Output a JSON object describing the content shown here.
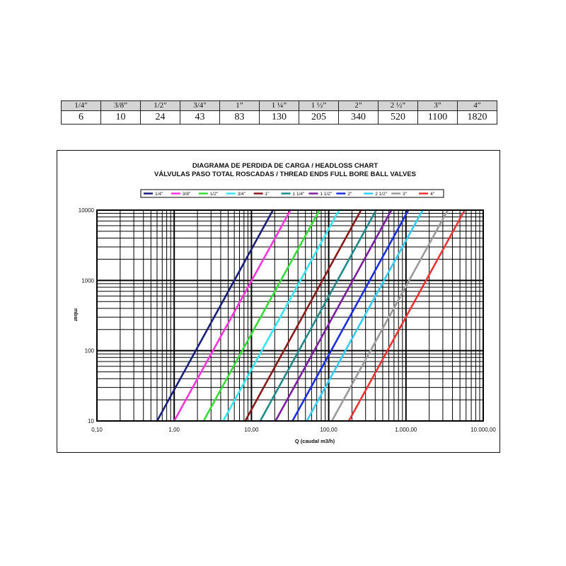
{
  "table": {
    "sizes": [
      "1/4\"",
      "3/8”",
      "1/2\"",
      "3/4\"",
      "1”",
      "1 ¼”",
      "1 ½”",
      "2”",
      "2 ½”",
      "3”",
      "4”"
    ],
    "cv_values": [
      "6",
      "10",
      "24",
      "43",
      "83",
      "130",
      "205",
      "340",
      "520",
      "1100",
      "1820"
    ]
  },
  "chart_data": {
    "type": "line",
    "title": "DIAGRAMA DE PERDIDA DE CARGA / HEADLOSS CHART",
    "subtitle": "VÁLVULAS PASO TOTAL ROSCADAS / THREAD ENDS FULL BORE BALL VALVES",
    "xlabel": "Q (caudal m3/h)",
    "ylabel": "mbar",
    "x_scale": "log",
    "y_scale": "log",
    "xlim": [
      0.1,
      10000
    ],
    "ylim": [
      10,
      10000
    ],
    "x_tick_labels": [
      "0,10",
      "1,00",
      "10,00",
      "100,00",
      "1.000,00",
      "10.000,00"
    ],
    "y_tick_labels": [
      "10000",
      "1000",
      "100",
      "10"
    ],
    "grid": true,
    "legend_position": "top",
    "series": [
      {
        "name": "1/4\"",
        "color": "#1a1f7a",
        "x": [
          0.6,
          19
        ],
        "y": [
          10,
          10000
        ]
      },
      {
        "name": "3/8\"",
        "color": "#ff33dd",
        "x": [
          1.0,
          32
        ],
        "y": [
          10,
          10000
        ]
      },
      {
        "name": "1/2\"",
        "color": "#33dd33",
        "x": [
          2.4,
          76
        ],
        "y": [
          10,
          10000
        ]
      },
      {
        "name": "3/4\"",
        "color": "#33e5f0",
        "x": [
          4.3,
          136
        ],
        "y": [
          10,
          10000
        ]
      },
      {
        "name": "1\"",
        "color": "#8b1a1a",
        "x": [
          8.3,
          262
        ],
        "y": [
          10,
          10000
        ]
      },
      {
        "name": "1 1/4\"",
        "color": "#1f8a8a",
        "x": [
          13,
          411
        ],
        "y": [
          10,
          10000
        ]
      },
      {
        "name": "1 1/2\"",
        "color": "#7a1fa0",
        "x": [
          20.5,
          648
        ],
        "y": [
          10,
          10000
        ]
      },
      {
        "name": "2\"",
        "color": "#1a2fe0",
        "x": [
          34,
          1075
        ],
        "y": [
          10,
          10000
        ]
      },
      {
        "name": "2 1/2\"",
        "color": "#33ccf5",
        "x": [
          52,
          1644
        ],
        "y": [
          10,
          10000
        ]
      },
      {
        "name": "3\"",
        "color": "#9a9a9a",
        "x": [
          110,
          3478
        ],
        "y": [
          10,
          10000
        ]
      },
      {
        "name": "4\"",
        "color": "#ee3333",
        "x": [
          182,
          5755
        ],
        "y": [
          10,
          10000
        ]
      }
    ]
  }
}
